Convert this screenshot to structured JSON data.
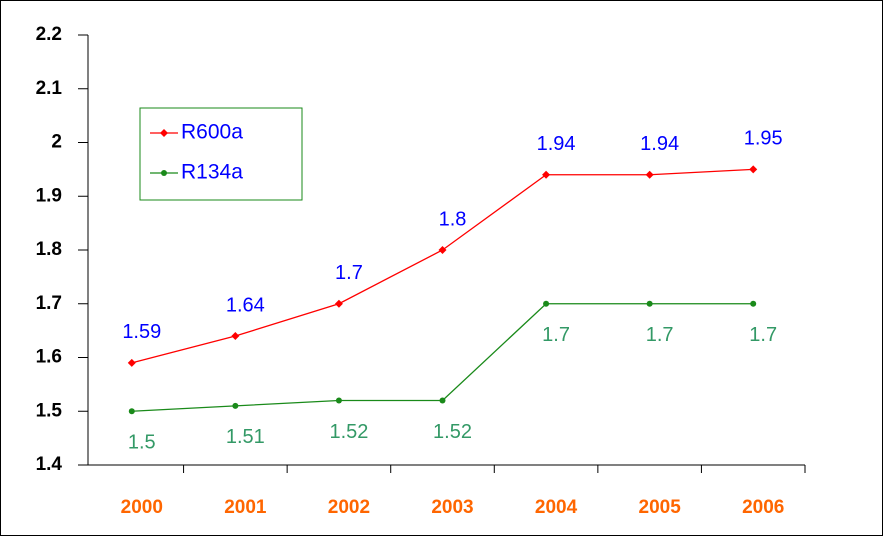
{
  "chart_data": {
    "type": "line",
    "categories": [
      "2000",
      "2001",
      "2002",
      "2003",
      "2004",
      "2005",
      "2006"
    ],
    "series": [
      {
        "name": "R600a",
        "color": "#ff0000",
        "marker": "diamond",
        "label_color": "#0000ff",
        "label_position": "above",
        "values": [
          1.59,
          1.64,
          1.7,
          1.8,
          1.94,
          1.94,
          1.95
        ]
      },
      {
        "name": "R134a",
        "color": "#1a8a1a",
        "marker": "circle",
        "label_color": "#339966",
        "label_position": "below",
        "values": [
          1.5,
          1.51,
          1.52,
          1.52,
          1.7,
          1.7,
          1.7
        ]
      }
    ],
    "ylim": [
      1.4,
      2.2
    ],
    "yticks": [
      1.4,
      1.5,
      1.6,
      1.7,
      1.8,
      1.9,
      2,
      2.1,
      2.2
    ],
    "grid": false,
    "legend": "upper left"
  }
}
